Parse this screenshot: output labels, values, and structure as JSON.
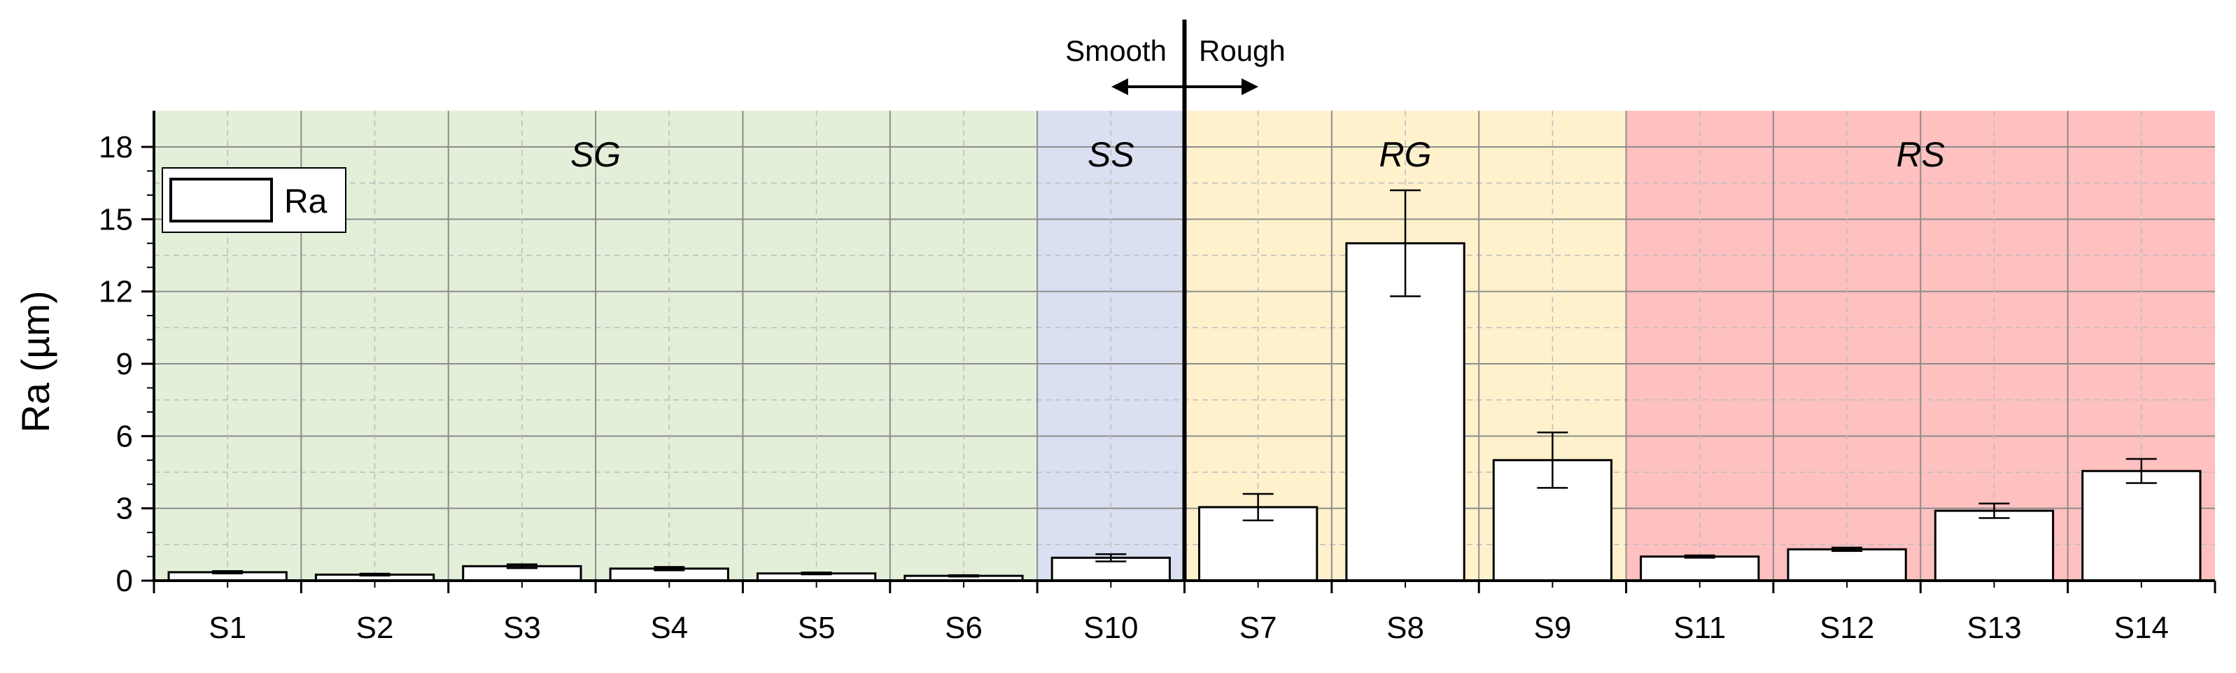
{
  "chart_data": {
    "type": "bar",
    "ylabel": "Ra (µm)",
    "xlabel": "",
    "ylim": [
      0,
      19.5
    ],
    "yticks": [
      "0",
      "3",
      "6",
      "9",
      "12",
      "15",
      "18"
    ],
    "categories": [
      "S1",
      "S2",
      "S3",
      "S4",
      "S5",
      "S6",
      "S10",
      "S7",
      "S8",
      "S9",
      "S11",
      "S12",
      "S13",
      "S14"
    ],
    "series": [
      {
        "name": "Ra",
        "values": [
          0.35,
          0.25,
          0.6,
          0.5,
          0.3,
          0.2,
          0.95,
          3.05,
          14.0,
          5.0,
          1.0,
          1.3,
          2.9,
          4.55
        ],
        "errors": [
          0.05,
          0.04,
          0.08,
          0.07,
          0.04,
          0.03,
          0.15,
          0.55,
          2.2,
          1.15,
          0.05,
          0.07,
          0.3,
          0.5
        ]
      }
    ],
    "regions": [
      {
        "label": "SG",
        "from": 0,
        "to": 5,
        "color": "#e3efd9"
      },
      {
        "label": "SS",
        "from": 6,
        "to": 6,
        "color": "#dae0f2"
      },
      {
        "label": "RG",
        "from": 7,
        "to": 9,
        "color": "#fef1cc"
      },
      {
        "label": "RS",
        "from": 10,
        "to": 13,
        "color": "#ffc0c0"
      }
    ],
    "divider": {
      "after_index": 6,
      "left_label": "Smooth",
      "right_label": "Rough"
    },
    "legend": {
      "position": "top-left",
      "label": "Ra"
    },
    "grid": true
  }
}
